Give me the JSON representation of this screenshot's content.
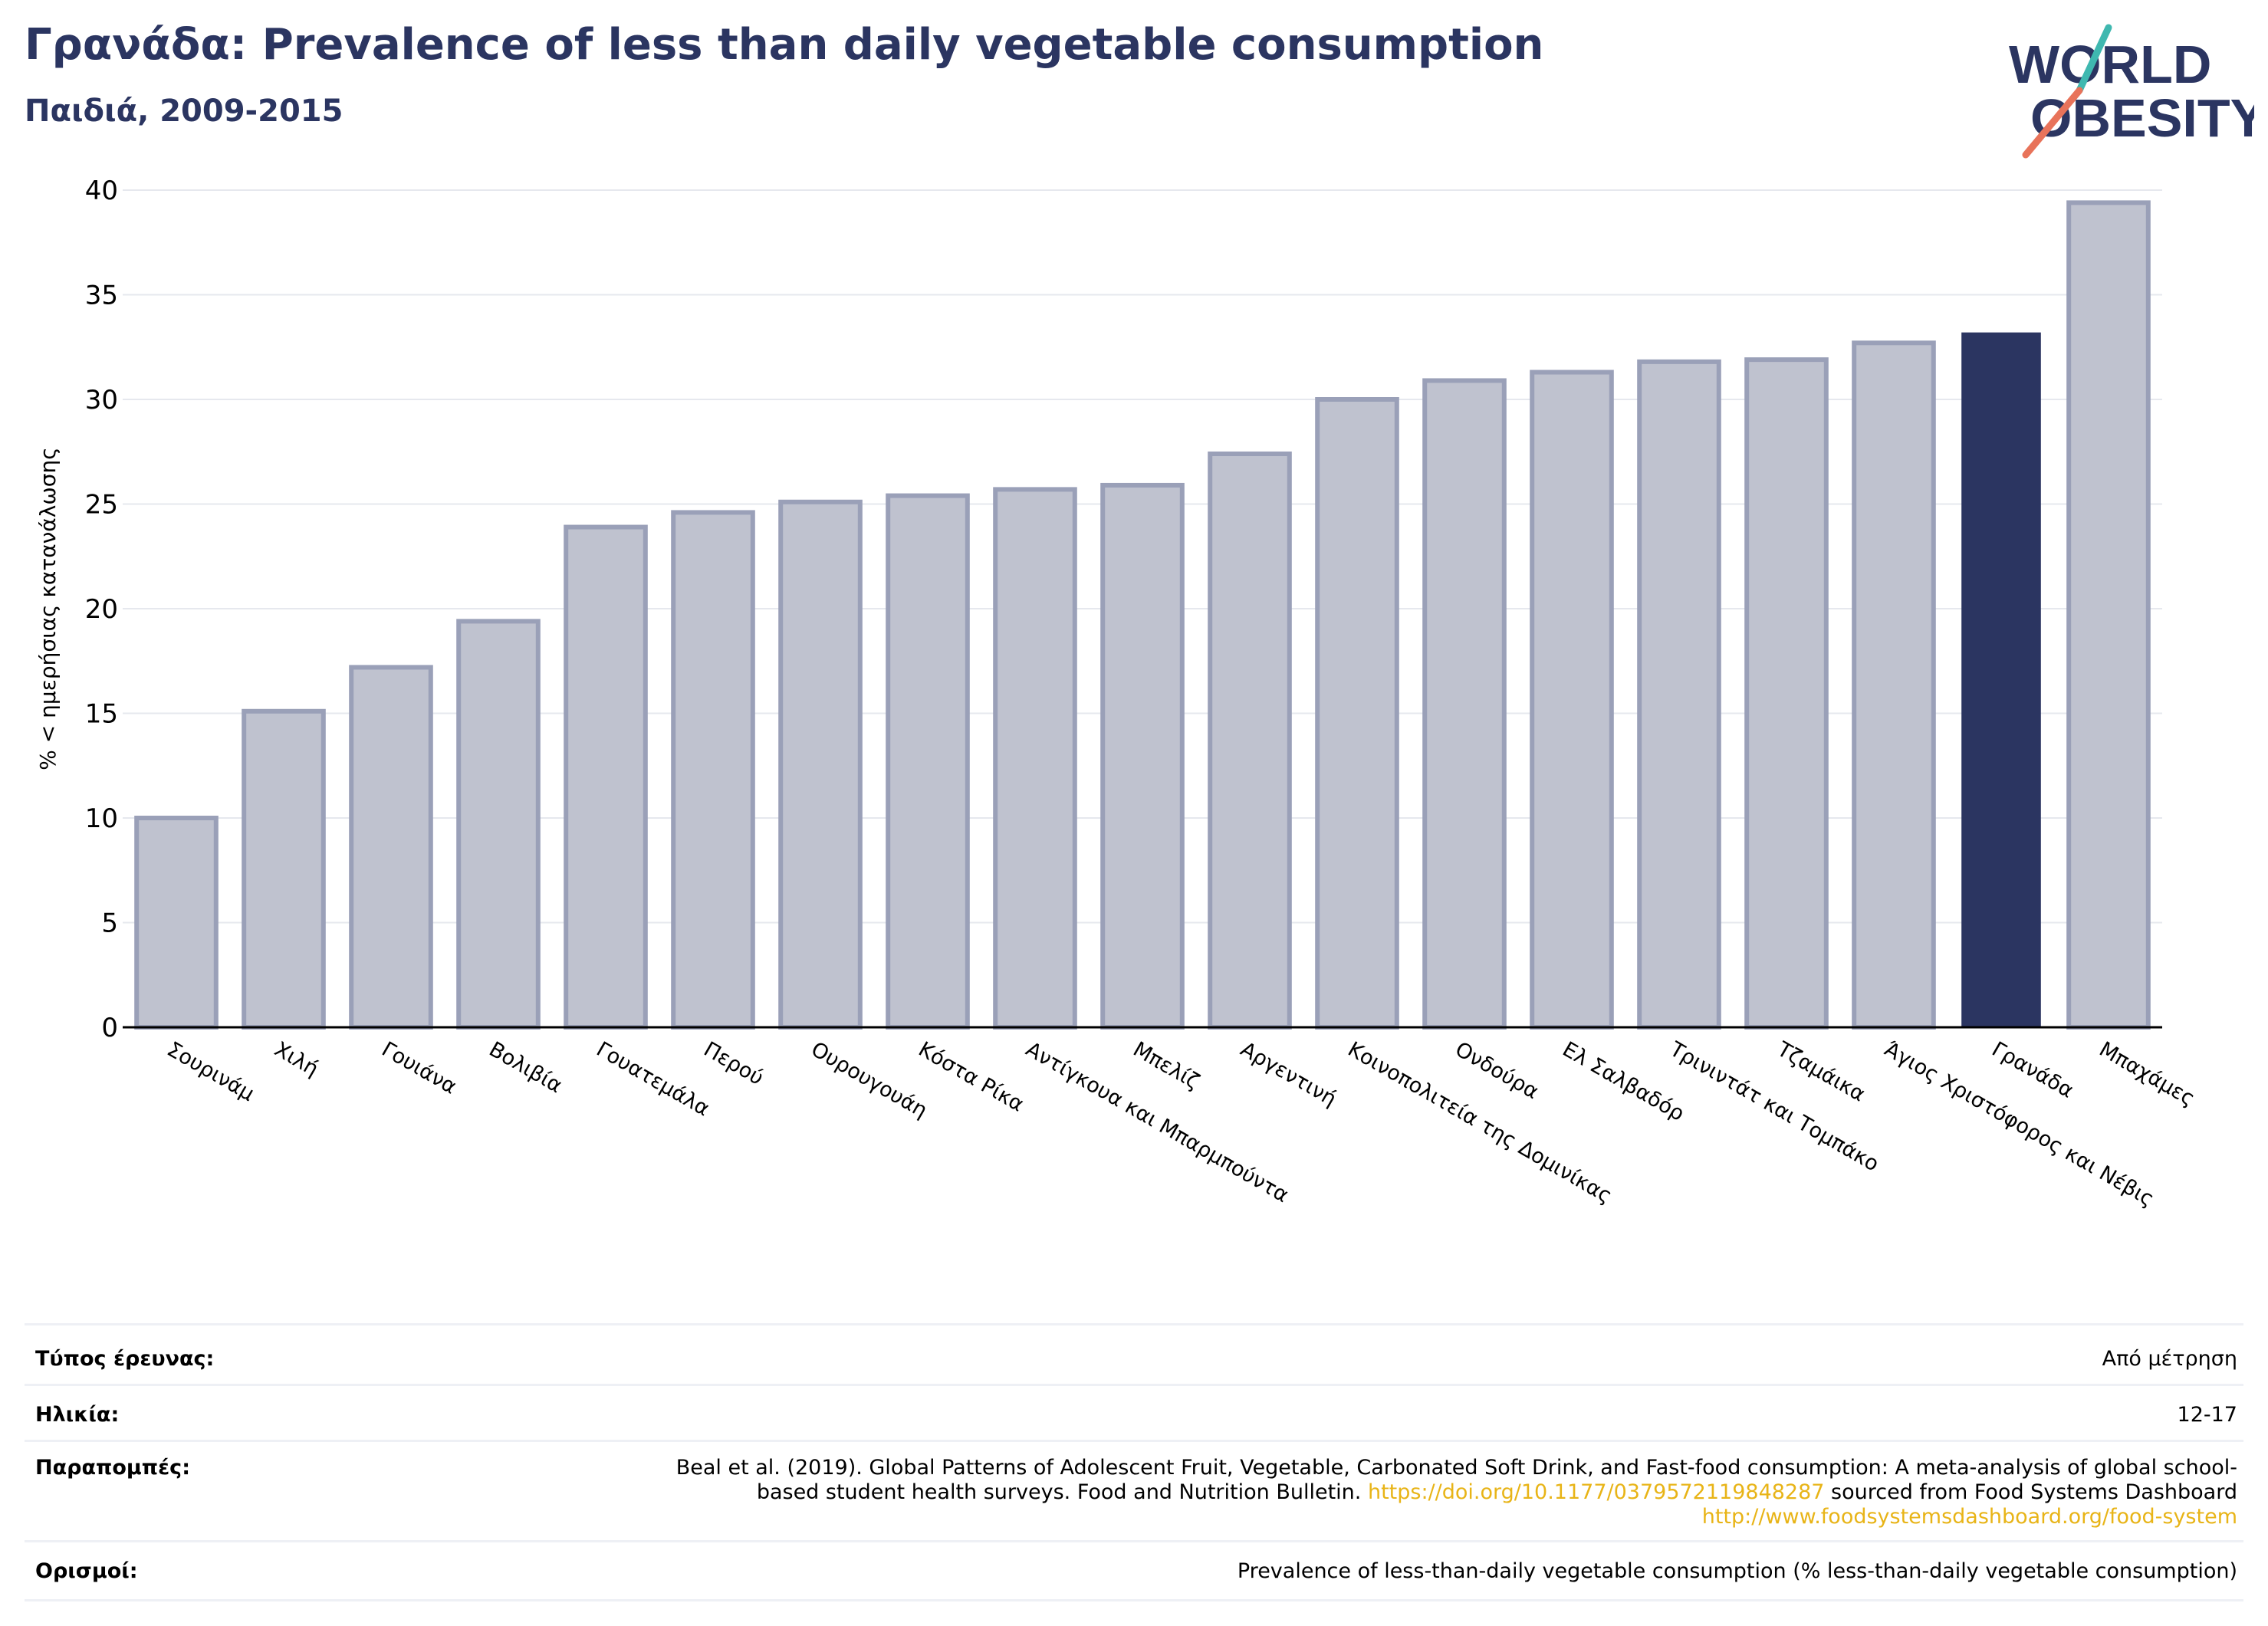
{
  "header": {
    "title": "Γρανάδα: Prevalence of less than daily vegetable consumption",
    "subtitle": "Παιδιά, 2009-2015"
  },
  "logo": {
    "line1": "WORLD",
    "line2": "OBESITY"
  },
  "colors": {
    "brand": "#2b3561",
    "bar_default": "#bfc2cf",
    "bar_stroke": "#9aa0b8",
    "bar_highlight": "#2b3561",
    "logo_slash_top": "#3fb8b0",
    "logo_slash_bottom": "#e8735a",
    "link": "#e8b417"
  },
  "chart_data": {
    "type": "bar",
    "title": "Γρανάδα: Prevalence of less than daily vegetable consumption",
    "subtitle": "Παιδιά, 2009-2015",
    "ylabel": "% < ημερήσιας κατανάλωσης",
    "xlabel": "",
    "ylim": [
      0,
      40
    ],
    "yticks": [
      0,
      5,
      10,
      15,
      20,
      25,
      30,
      35,
      40
    ],
    "grid": true,
    "highlight": "Γρανάδα",
    "categories": [
      "Σουρινάμ",
      "Χιλή",
      "Γουιάνα",
      "Βολιβία",
      "Γουατεμάλα",
      "Περού",
      "Ουρουγουάη",
      "Κόστα Ρίκα",
      "Αντίγκουα και Μπαρμπούντα",
      "Μπελίζ",
      "Αργεντινή",
      "Κοινοπολιτεία της Δομινίκας",
      "Ονδούρα",
      "Ελ Σαλβαδόρ",
      "Τρινιντάτ και Τομπάκο",
      "Τζαμάικα",
      "Άγιος Χριστόφορος και Νέβις",
      "Γρανάδα",
      "Μπαχάμες"
    ],
    "values": [
      10.0,
      15.1,
      17.2,
      19.4,
      23.9,
      24.6,
      25.1,
      25.4,
      25.7,
      25.9,
      27.4,
      30.0,
      30.9,
      31.3,
      31.8,
      31.9,
      32.7,
      33.2,
      39.4
    ]
  },
  "info": {
    "rows": [
      {
        "label": "Τύπος έρευνας:",
        "value": "Από μέτρηση"
      },
      {
        "label": "Ηλικία:",
        "value": "12-17"
      },
      {
        "label": "Παραπομπές:",
        "value_parts": [
          {
            "text": "Beal et al. (2019). Global Patterns of Adolescent Fruit, Vegetable, Carbonated Soft Drink, and Fast-food consumption: A meta-analysis of global school-based student health surveys. Food and Nutrition Bulletin. "
          },
          {
            "text": "https://doi.org/10.1177/0379572119848287",
            "link": true
          },
          {
            "text": " sourced from Food Systems Dashboard "
          },
          {
            "text": "http://www.foodsystemsdashboard.org/food-system",
            "link": true
          }
        ]
      },
      {
        "label": "Ορισμοί:",
        "value": "Prevalence of less-than-daily vegetable consumption (% less-than-daily vegetable consumption)"
      }
    ]
  }
}
